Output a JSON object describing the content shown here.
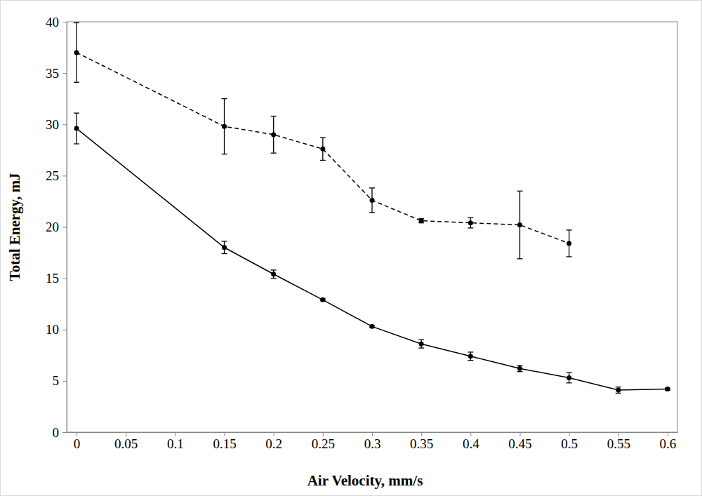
{
  "chart_data": {
    "type": "line",
    "x_label": "Air Velocity, mm/s",
    "y_label": "Total Energy, mJ",
    "xlim": [
      -0.01,
      0.61
    ],
    "xticks": [
      0,
      0.05,
      0.1,
      0.15,
      0.2,
      0.25,
      0.3,
      0.35,
      0.4,
      0.45,
      0.5,
      0.55,
      0.6
    ],
    "ylim": [
      0,
      40
    ],
    "yticks": [
      0,
      5,
      10,
      15,
      20,
      25,
      30,
      35,
      40
    ],
    "grid": false,
    "series": [
      {
        "color": "#000000",
        "line_style": "dashed",
        "marker": "circle",
        "x": [
          0,
          0.15,
          0.2,
          0.25,
          0.3,
          0.35,
          0.4,
          0.45,
          0.5
        ],
        "values": [
          37.0,
          29.8,
          29.0,
          27.6,
          22.6,
          20.6,
          20.4,
          20.2,
          18.4
        ],
        "errors": [
          2.9,
          2.7,
          1.8,
          1.1,
          1.2,
          0.2,
          0.5,
          3.3,
          1.3
        ]
      },
      {
        "color": "#000000",
        "line_style": "solid",
        "marker": "circle",
        "x": [
          0,
          0.15,
          0.2,
          0.25,
          0.3,
          0.35,
          0.4,
          0.45,
          0.5,
          0.55,
          0.6
        ],
        "values": [
          29.6,
          18.0,
          15.4,
          12.9,
          10.3,
          8.6,
          7.4,
          6.2,
          5.3,
          4.1,
          4.2
        ],
        "errors": [
          1.5,
          0.6,
          0.4,
          0.1,
          0.1,
          0.4,
          0.4,
          0.3,
          0.5,
          0.3,
          0.1
        ]
      }
    ]
  }
}
